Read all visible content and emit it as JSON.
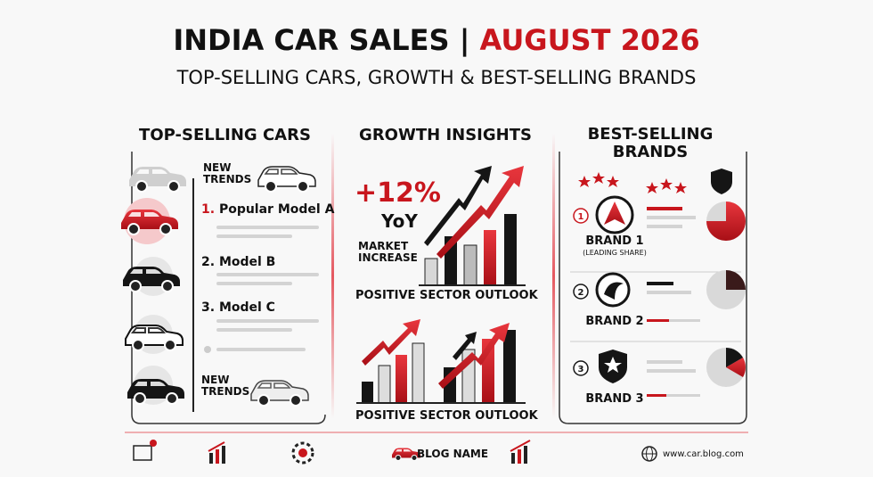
{
  "header": {
    "title": "INDIA CAR SALES |",
    "title_highlight": "AUGUST 2026",
    "subtitle": "TOP-SELLING CARS, GROWTH & BEST-SELLING BRANDS"
  },
  "top_selling_cars": {
    "heading": "TOP-SELLING CARS",
    "trend_labels": [
      "NEW TRENDS",
      "NEW TRENDS"
    ],
    "items": [
      {
        "rank": "1.",
        "name": "Popular Model A"
      },
      {
        "rank": "2.",
        "name": "Model B"
      },
      {
        "rank": "3.",
        "name": "Model C"
      }
    ]
  },
  "growth_insights": {
    "heading": "GROWTH INSIGHTS",
    "growth": "+12%",
    "period": "YoY",
    "growth_label": "MARKET INCREASE",
    "outlook_captions": [
      "POSITIVE SECTOR OUTLOOK",
      "POSITIVE SECTOR OUTLOOK"
    ]
  },
  "best_selling_brands": {
    "heading": "BEST-SELLING BRANDS",
    "brands": [
      {
        "rank": "1",
        "name": "BRAND 1",
        "note": "(LEADING SHARE)"
      },
      {
        "rank": "2",
        "name": "BRAND 2"
      },
      {
        "rank": "3",
        "name": "BRAND 3"
      }
    ]
  },
  "footer": {
    "blog_name": "BLOG NAME",
    "website": "www.car.blog.com"
  }
}
